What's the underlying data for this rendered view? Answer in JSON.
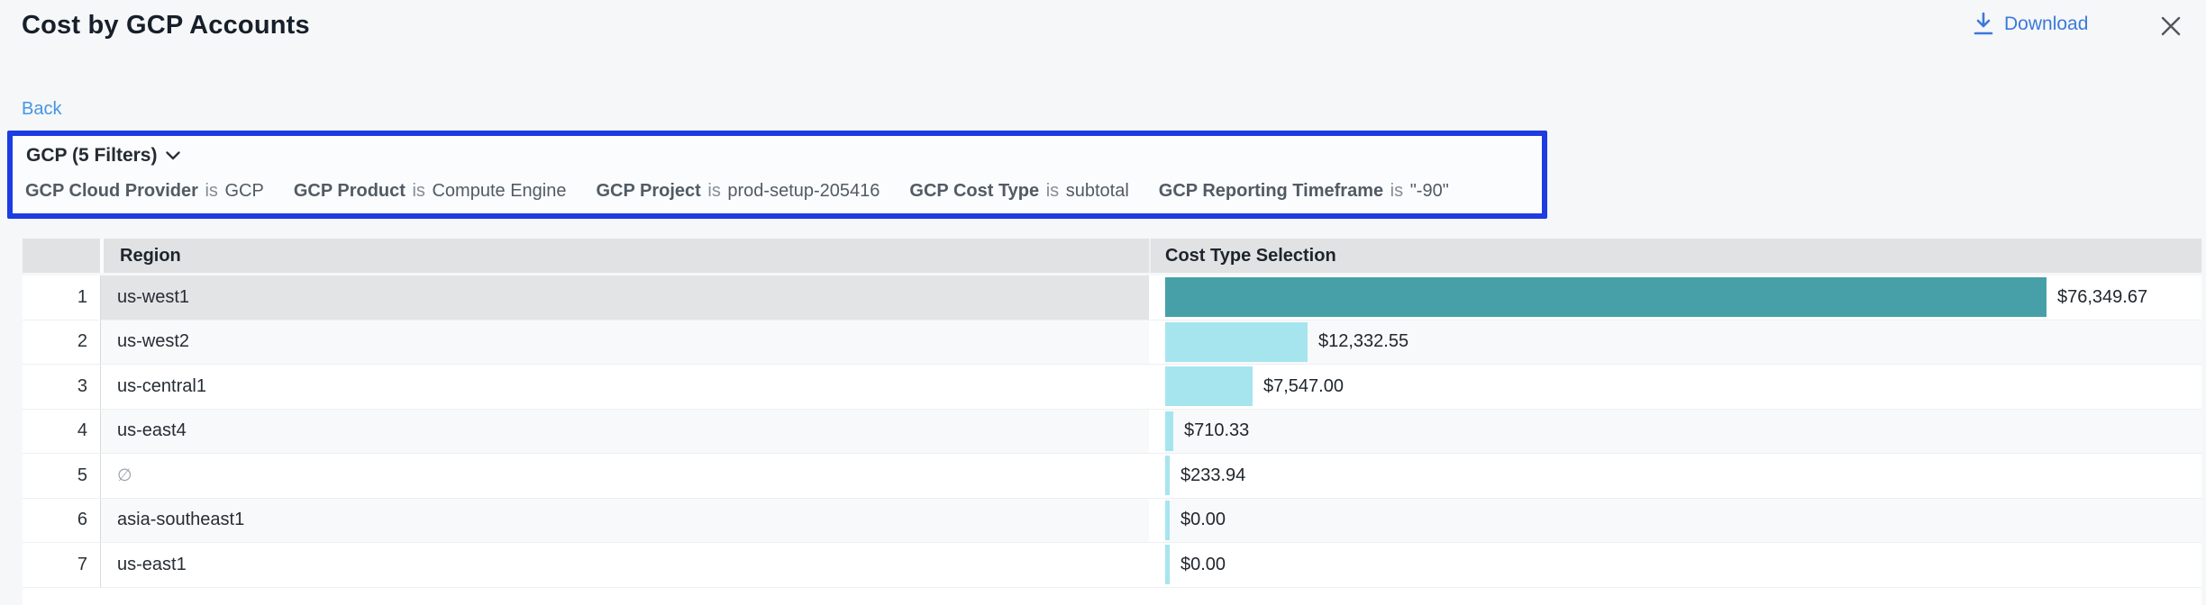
{
  "header": {
    "title": "Cost by GCP Accounts",
    "download_label": "Download"
  },
  "nav": {
    "back_label": "Back"
  },
  "filter_panel": {
    "summary_label": "GCP (5 Filters)",
    "filters": [
      {
        "field": "GCP Cloud Provider",
        "op": "is",
        "value": "GCP"
      },
      {
        "field": "GCP Product",
        "op": "is",
        "value": "Compute Engine"
      },
      {
        "field": "GCP Project",
        "op": "is",
        "value": "prod-setup-205416"
      },
      {
        "field": "GCP Cost Type",
        "op": "is",
        "value": "subtotal"
      },
      {
        "field": "GCP Reporting Timeframe",
        "op": "is",
        "value": "\"-90\""
      }
    ]
  },
  "table": {
    "columns": {
      "region": "Region",
      "cost": "Cost Type Selection"
    },
    "rows": [
      {
        "index": 1,
        "region": "us-west1",
        "region_empty": false,
        "value": 76349.67,
        "value_label": "$76,349.67",
        "selected": true
      },
      {
        "index": 2,
        "region": "us-west2",
        "region_empty": false,
        "value": 12332.55,
        "value_label": "$12,332.55",
        "selected": false
      },
      {
        "index": 3,
        "region": "us-central1",
        "region_empty": false,
        "value": 7547.0,
        "value_label": "$7,547.00",
        "selected": false
      },
      {
        "index": 4,
        "region": "us-east4",
        "region_empty": false,
        "value": 710.33,
        "value_label": "$710.33",
        "selected": false
      },
      {
        "index": 5,
        "region": "∅",
        "region_empty": true,
        "value": 233.94,
        "value_label": "$233.94",
        "selected": false
      },
      {
        "index": 6,
        "region": "asia-southeast1",
        "region_empty": false,
        "value": 0.0,
        "value_label": "$0.00",
        "selected": false
      },
      {
        "index": 7,
        "region": "us-east1",
        "region_empty": false,
        "value": 0.0,
        "value_label": "$0.00",
        "selected": false
      }
    ]
  },
  "chart_data": {
    "type": "bar",
    "orientation": "horizontal",
    "categories": [
      "us-west1",
      "us-west2",
      "us-central1",
      "us-east4",
      "∅",
      "asia-southeast1",
      "us-east1"
    ],
    "values": [
      76349.67,
      12332.55,
      7547.0,
      710.33,
      233.94,
      0.0,
      0.0
    ],
    "title": "Cost by GCP Accounts",
    "xlabel": "Cost Type Selection",
    "ylabel": "Region",
    "xlim": [
      0,
      76349.67
    ],
    "grid": false,
    "legend": false
  },
  "colors": {
    "bar_selected": "#47a0a8",
    "bar_default": "#a6e5ee",
    "filter_box_border": "#1d3ce2",
    "download_link": "#3b79dc",
    "back_link": "#4695e4",
    "header_bg": "#e1e2e3",
    "selected_cell_bg": "#e3e4e5"
  }
}
